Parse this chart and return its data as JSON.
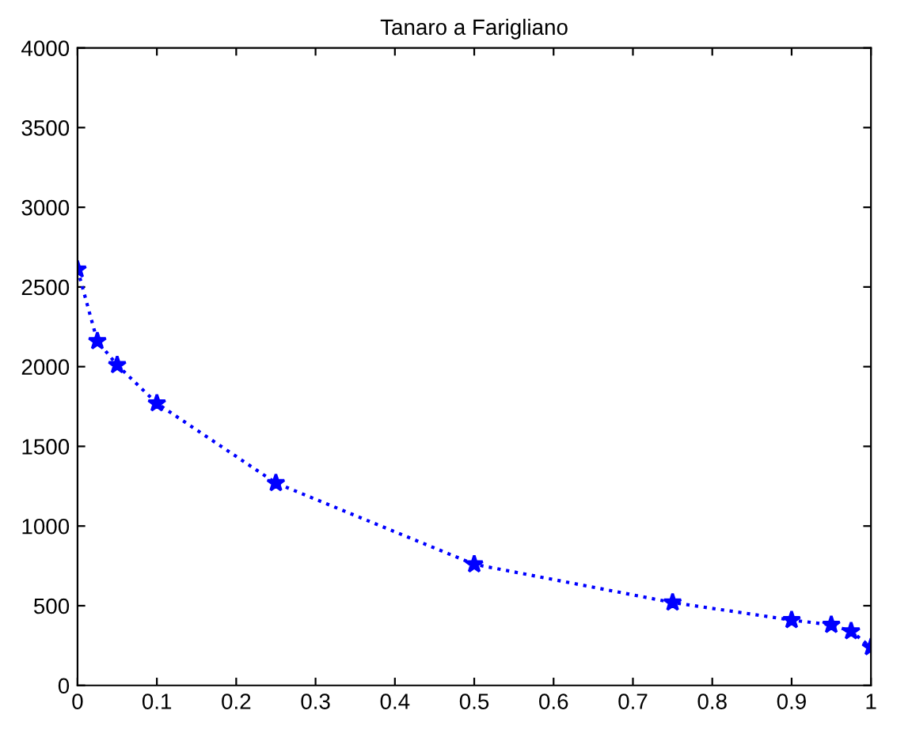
{
  "chart_data": {
    "type": "line",
    "title": "Tanaro a Farigliano",
    "x": [
      0,
      0.025,
      0.05,
      0.1,
      0.25,
      0.5,
      0.75,
      0.9,
      0.95,
      0.975,
      1
    ],
    "series": [
      {
        "color": "#0000ff",
        "values": [
          2610,
          2160,
          2010,
          1770,
          1270,
          760,
          520,
          410,
          380,
          340,
          240
        ]
      }
    ],
    "xlim": [
      0,
      1
    ],
    "ylim": [
      0,
      4000
    ],
    "xticks": [
      0,
      0.1,
      0.2,
      0.3,
      0.4,
      0.5,
      0.6,
      0.7,
      0.8,
      0.9,
      1
    ],
    "yticks": [
      0,
      500,
      1000,
      1500,
      2000,
      2500,
      3000,
      3500,
      4000
    ],
    "marker": "star",
    "line_style": "dotted",
    "grid": false
  }
}
